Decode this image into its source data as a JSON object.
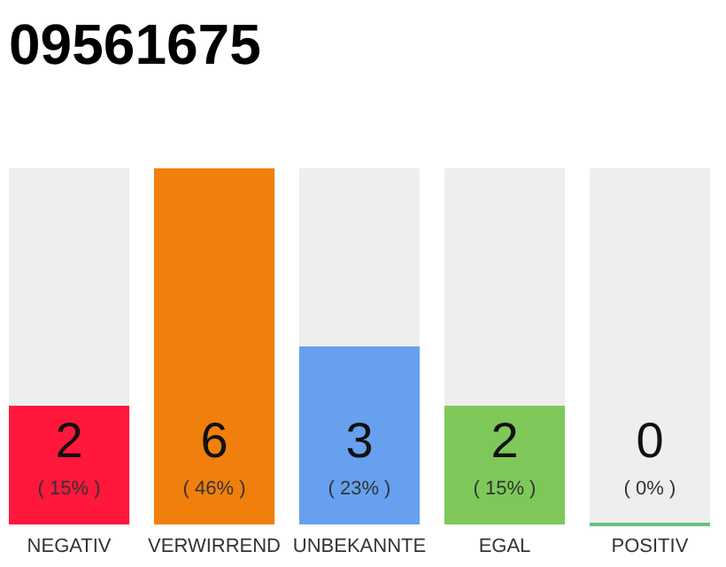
{
  "chart_data": {
    "type": "bar",
    "title": "09561675",
    "categories": [
      "NEGATIV",
      "VERWIRREND",
      "UNBEKANNTE",
      "EGAL",
      "POSITIV"
    ],
    "values": [
      2,
      6,
      3,
      2,
      0
    ],
    "colors": [
      "#ff173c",
      "#f07f0c",
      "#66a0ee",
      "#7ec85a",
      "#2aa84a"
    ],
    "data_labels": true,
    "annotations": [
      "( 15% )",
      "( 46% )",
      "( 23% )",
      "( 15% )",
      "( 0% )"
    ]
  }
}
